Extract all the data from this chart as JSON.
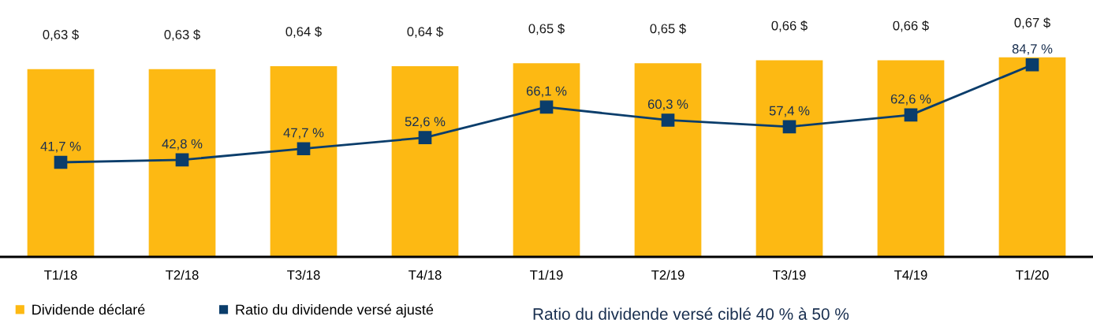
{
  "chart_data": {
    "type": "bar",
    "categories": [
      "T1/18",
      "T2/18",
      "T3/18",
      "T4/18",
      "T1/19",
      "T2/19",
      "T3/19",
      "T4/19",
      "T1/20"
    ],
    "series": [
      {
        "name": "Dividende déclaré",
        "color": "#fdb913",
        "values": [
          0.63,
          0.63,
          0.64,
          0.64,
          0.65,
          0.65,
          0.66,
          0.66,
          0.67
        ],
        "value_labels": [
          "0,63 $",
          "0,63 $",
          "0,64 $",
          "0,64 $",
          "0,65 $",
          "0,65 $",
          "0,66 $",
          "0,66 $",
          "0,67 $"
        ]
      },
      {
        "name": "Ratio du dividende versé ajusté",
        "type": "line",
        "axis": "y2",
        "color": "#0a3d6b",
        "values": [
          41.7,
          42.8,
          47.7,
          52.6,
          66.1,
          60.3,
          57.4,
          62.6,
          84.7
        ],
        "value_labels": [
          "41,7 %",
          "42,8 %",
          "47,7 %",
          "52,6 %",
          "66,1 %",
          "60,3 %",
          "57,4 %",
          "62,6 %",
          "84,7 %"
        ]
      }
    ],
    "tick_labels": "x",
    "grid": false,
    "legend": "bottom left",
    "marker": "square",
    "line_style": "solid",
    "annotations": [
      "Ratio du dividende versé ciblé 40 % à 50 %"
    ]
  }
}
